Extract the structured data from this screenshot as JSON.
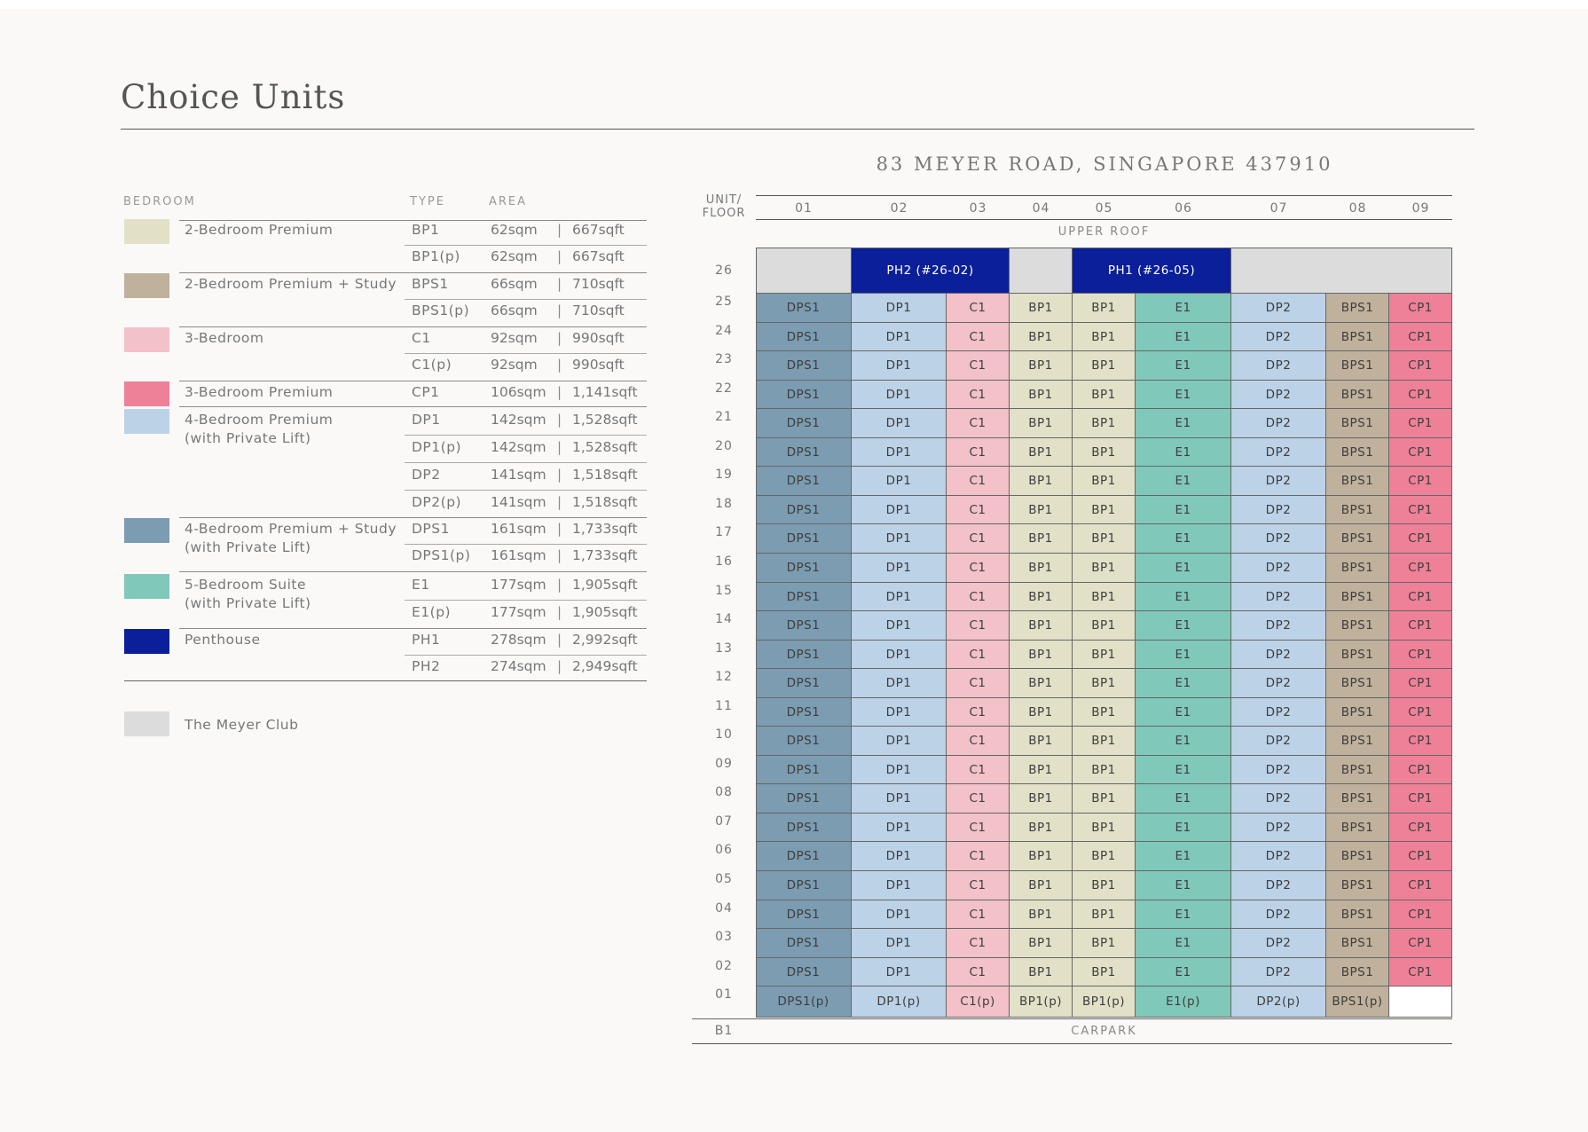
{
  "title": "Choice Units",
  "legend": {
    "headers": {
      "bedroom": "BEDROOM",
      "type": "TYPE",
      "area": "AREA"
    },
    "categories": [
      {
        "key": "bp",
        "name": [
          "2-Bedroom Premium"
        ],
        "color": "#e2e1c8",
        "types": [
          {
            "type": "BP1",
            "sqm": "62sqm",
            "sqft": "667sqft"
          },
          {
            "type": "BP1(p)",
            "sqm": "62sqm",
            "sqft": "667sqft"
          }
        ]
      },
      {
        "key": "bps",
        "name": [
          "2-Bedroom Premium + Study"
        ],
        "color": "#bfb19c",
        "types": [
          {
            "type": "BPS1",
            "sqm": "66sqm",
            "sqft": "710sqft"
          },
          {
            "type": "BPS1(p)",
            "sqm": "66sqm",
            "sqft": "710sqft"
          }
        ]
      },
      {
        "key": "c",
        "name": [
          "3-Bedroom"
        ],
        "color": "#f3c1c8",
        "types": [
          {
            "type": "C1",
            "sqm": "92sqm",
            "sqft": "990sqft"
          },
          {
            "type": "C1(p)",
            "sqm": "92sqm",
            "sqft": "990sqft"
          }
        ]
      },
      {
        "key": "cp",
        "name": [
          "3-Bedroom Premium"
        ],
        "color": "#ee8198",
        "types": [
          {
            "type": "CP1",
            "sqm": "106sqm",
            "sqft": "1,141sqft"
          }
        ]
      },
      {
        "key": "dp",
        "name": [
          "4-Bedroom Premium",
          "(with Private Lift)"
        ],
        "color": "#bcd2e7",
        "types": [
          {
            "type": "DP1",
            "sqm": "142sqm",
            "sqft": "1,528sqft"
          },
          {
            "type": "DP1(p)",
            "sqm": "142sqm",
            "sqft": "1,528sqft"
          },
          {
            "type": "DP2",
            "sqm": "141sqm",
            "sqft": "1,518sqft"
          },
          {
            "type": "DP2(p)",
            "sqm": "141sqm",
            "sqft": "1,518sqft"
          }
        ]
      },
      {
        "key": "dps",
        "name": [
          "4-Bedroom Premium + Study",
          "(with Private Lift)"
        ],
        "color": "#7b9cb1",
        "types": [
          {
            "type": "DPS1",
            "sqm": "161sqm",
            "sqft": "1,733sqft"
          },
          {
            "type": "DPS1(p)",
            "sqm": "161sqm",
            "sqft": "1,733sqft"
          }
        ]
      },
      {
        "key": "e",
        "name": [
          "5-Bedroom Suite",
          "(with Private Lift)"
        ],
        "color": "#80c8ba",
        "types": [
          {
            "type": "E1",
            "sqm": "177sqm",
            "sqft": "1,905sqft"
          },
          {
            "type": "E1(p)",
            "sqm": "177sqm",
            "sqft": "1,905sqft"
          }
        ]
      },
      {
        "key": "ph",
        "name": [
          "Penthouse"
        ],
        "color": "#0a1f99",
        "types": [
          {
            "type": "PH1",
            "sqm": "278sqm",
            "sqft": "2,992sqft"
          },
          {
            "type": "PH2",
            "sqm": "274sqm",
            "sqft": "2,949sqft"
          }
        ]
      }
    ],
    "club": {
      "name": "The Meyer Club",
      "color": "#dcdcdc"
    },
    "separator": "|"
  },
  "chart": {
    "address": "83 MEYER ROAD, SINGAPORE 437910",
    "axis_label": [
      "UNIT/",
      "FLOOR"
    ],
    "columns": [
      "01",
      "02",
      "03",
      "04",
      "05",
      "06",
      "07",
      "08",
      "09"
    ],
    "column_types": [
      "DPS1",
      "DP1",
      "C1",
      "BP1",
      "BP1",
      "E1",
      "DP2",
      "BPS1",
      "CP1"
    ],
    "ground_types": [
      "DPS1(p)",
      "DP1(p)",
      "C1(p)",
      "BP1(p)",
      "BP1(p)",
      "E1(p)",
      "DP2(p)",
      "BPS1(p)",
      ""
    ],
    "upper_roof": "UPPER ROOF",
    "floor_26": {
      "label": "26",
      "penthouse_2": "PH2 (#26-02)",
      "penthouse_1": "PH1 (#26-05)"
    },
    "floors": [
      "25",
      "24",
      "23",
      "22",
      "21",
      "20",
      "19",
      "18",
      "17",
      "16",
      "15",
      "14",
      "13",
      "12",
      "11",
      "10",
      "09",
      "08",
      "07",
      "06",
      "05",
      "04",
      "03",
      "02"
    ],
    "ground_floor": "01",
    "basement": {
      "label": "B1",
      "name": "CARPARK"
    },
    "type_colors": {
      "DPS1": "#7b9cb1",
      "DP1": "#bcd2e7",
      "C1": "#f3c1c8",
      "BP1": "#e2e1c8",
      "E1": "#80c8ba",
      "DP2": "#bcd2e7",
      "BPS1": "#bfb19c",
      "CP1": "#ee8198",
      "club": "#dcdcdc",
      "penthouse": "#0a1f99",
      "empty": "#ffffff"
    }
  }
}
